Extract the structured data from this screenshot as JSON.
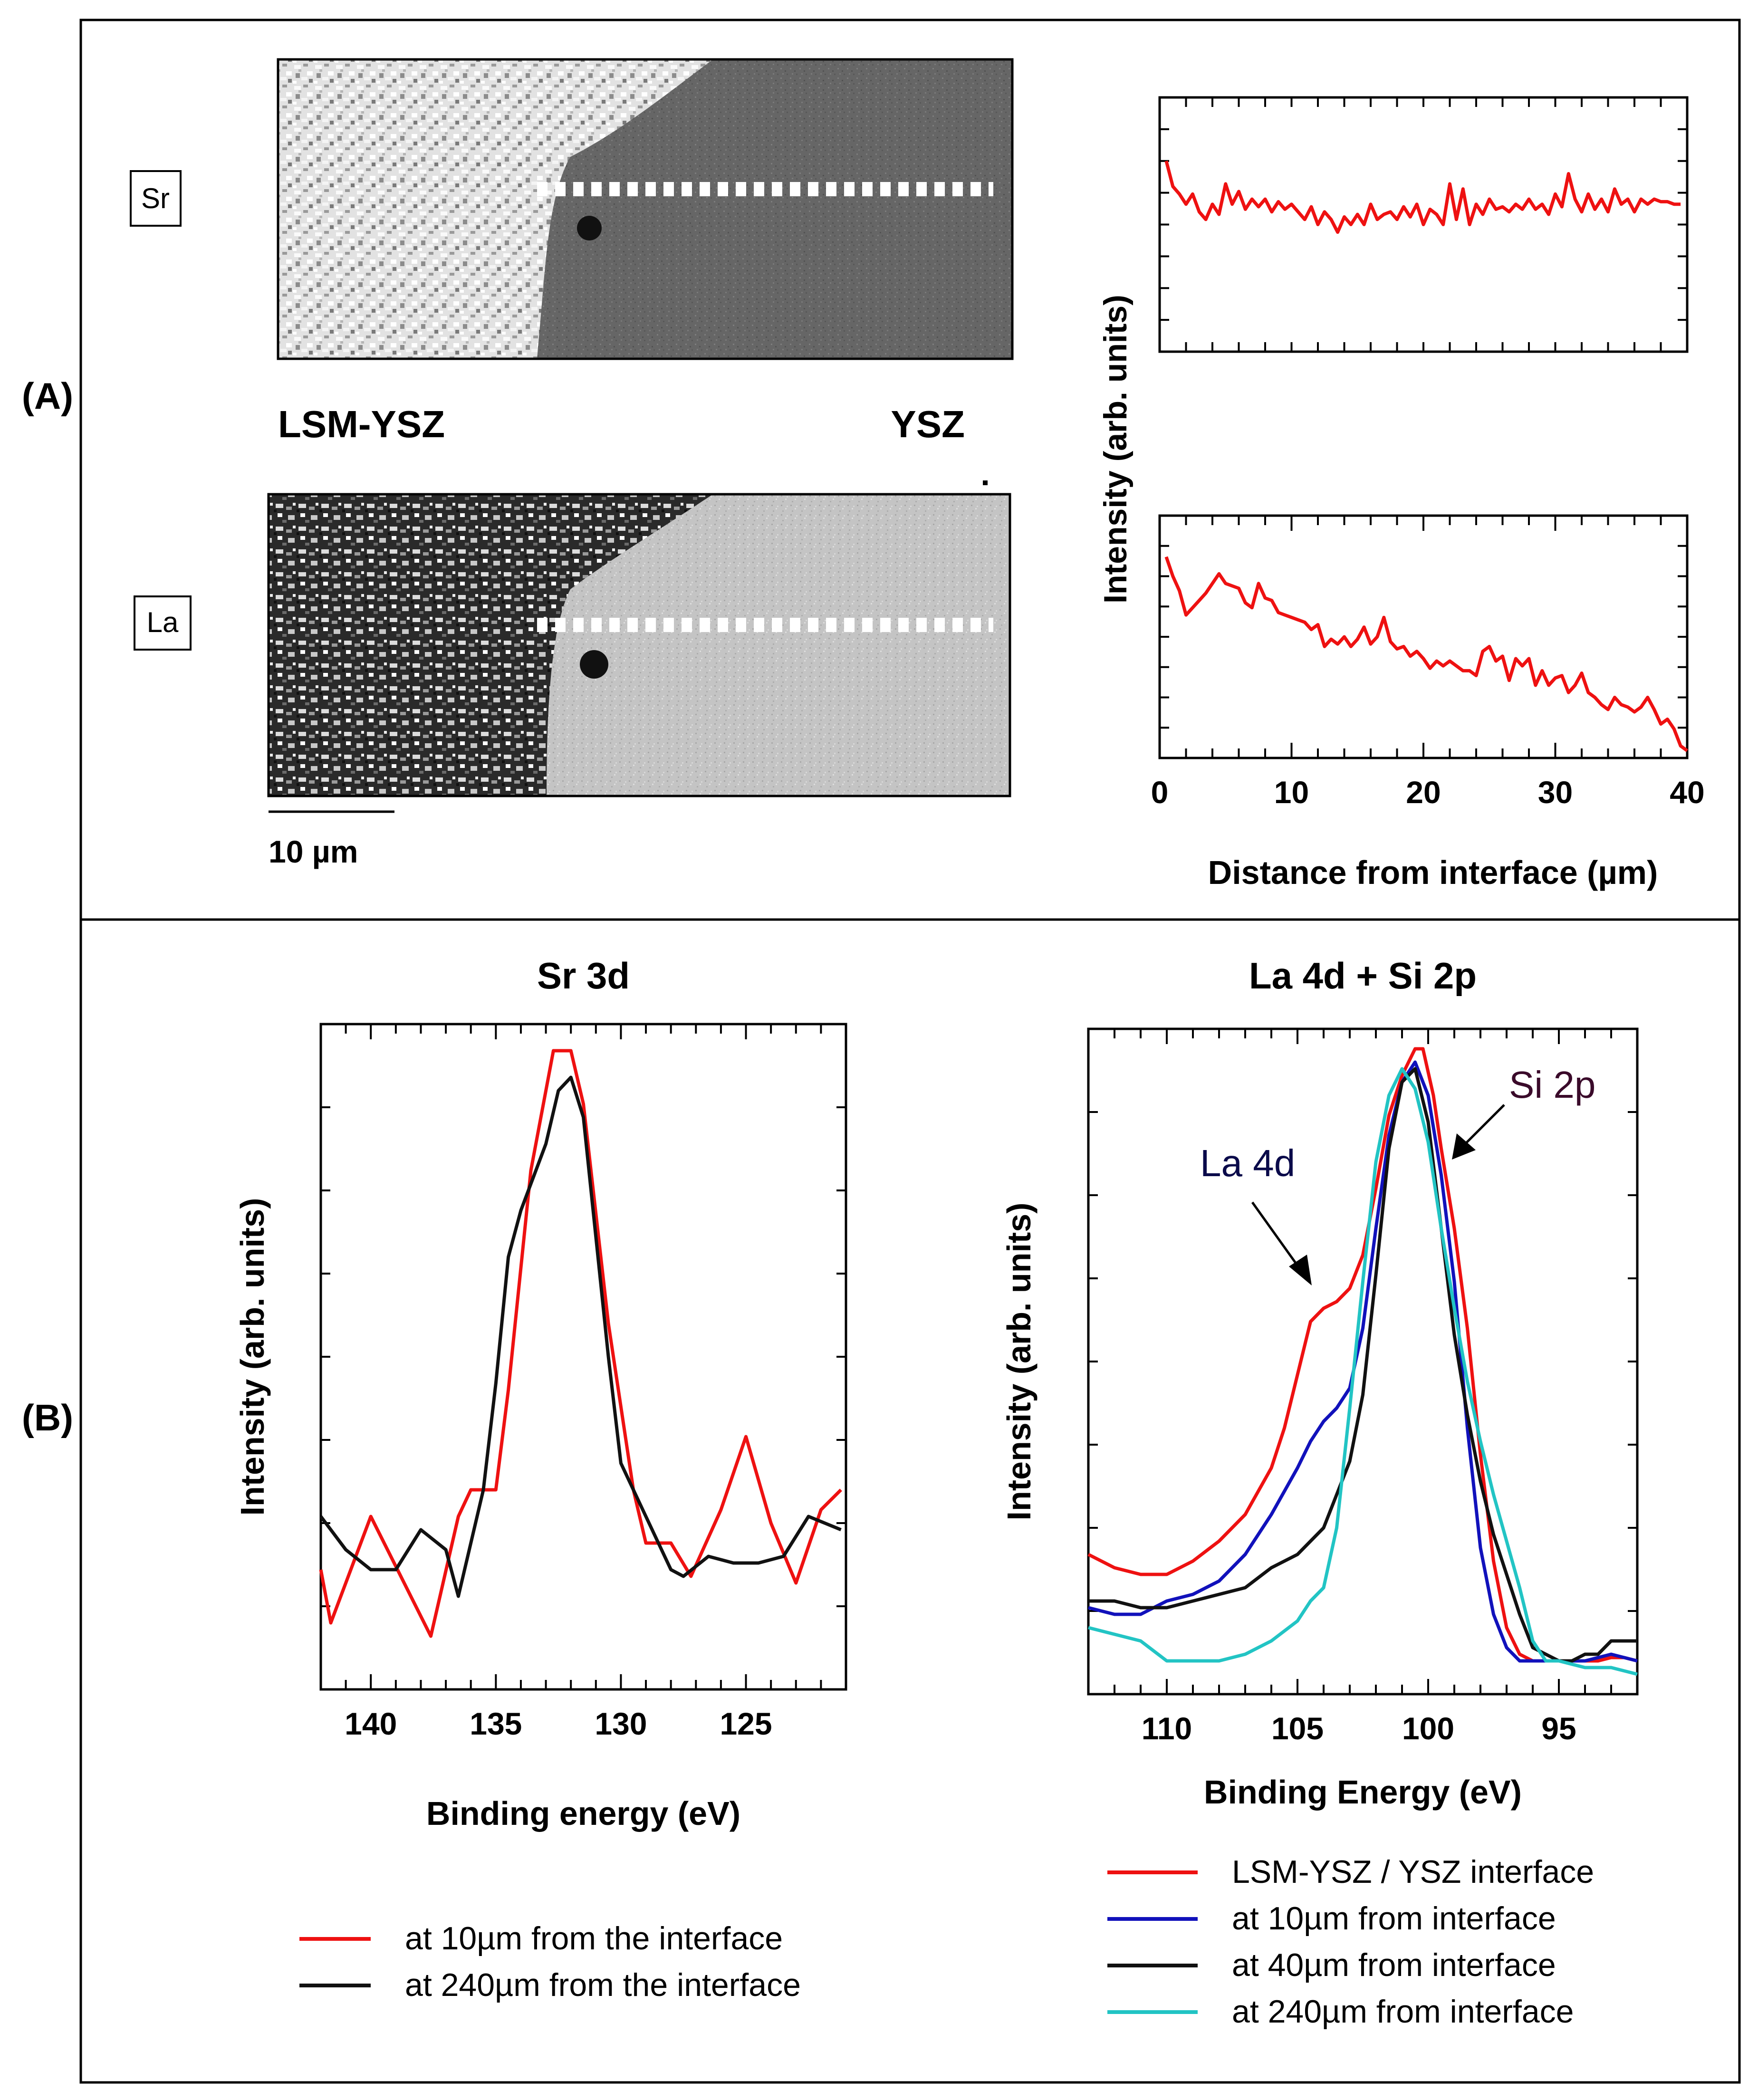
{
  "panels": {
    "a_label": "(A)",
    "b_label": "(B)"
  },
  "maps": {
    "sr_label": "Sr",
    "la_label": "La",
    "left_region": "LSM-YSZ",
    "right_region": "YSZ",
    "scale_bar": "10 µm"
  },
  "colors": {
    "red": "#ee1111",
    "blue": "#1111bb",
    "black": "#111111",
    "cyan": "#22c4c4"
  },
  "chart_data": [
    {
      "id": "sr_profile",
      "type": "line",
      "xlabel": "",
      "ylabel": "",
      "xlim": [
        0,
        40
      ],
      "ylim": [
        0,
        1
      ],
      "series": [
        {
          "color": "red",
          "x": [
            0.5,
            1,
            1.5,
            2,
            2.5,
            3,
            3.5,
            4,
            4.5,
            5,
            5.5,
            6,
            6.5,
            7,
            7.5,
            8,
            8.5,
            9,
            9.5,
            10,
            10.5,
            11,
            11.5,
            12,
            12.5,
            13,
            13.5,
            14,
            14.5,
            15,
            15.5,
            16,
            16.5,
            17,
            17.5,
            18,
            18.5,
            19,
            19.5,
            20,
            20.5,
            21,
            21.5,
            22,
            22.5,
            23,
            23.5,
            24,
            24.5,
            25,
            25.5,
            26,
            26.5,
            27,
            27.5,
            28,
            28.5,
            29,
            29.5,
            30,
            30.5,
            31,
            31.5,
            32,
            32.5,
            33,
            33.5,
            34,
            34.5,
            35,
            35.5,
            36,
            36.5,
            37,
            37.5,
            38,
            38.5,
            39,
            39.5
          ],
          "y": [
            0.75,
            0.65,
            0.62,
            0.58,
            0.62,
            0.55,
            0.52,
            0.58,
            0.54,
            0.66,
            0.58,
            0.63,
            0.56,
            0.6,
            0.57,
            0.6,
            0.55,
            0.59,
            0.56,
            0.58,
            0.55,
            0.52,
            0.57,
            0.5,
            0.55,
            0.52,
            0.47,
            0.53,
            0.5,
            0.54,
            0.5,
            0.58,
            0.52,
            0.54,
            0.55,
            0.52,
            0.57,
            0.53,
            0.58,
            0.5,
            0.56,
            0.54,
            0.5,
            0.66,
            0.52,
            0.64,
            0.5,
            0.58,
            0.54,
            0.6,
            0.56,
            0.57,
            0.55,
            0.58,
            0.56,
            0.6,
            0.56,
            0.58,
            0.54,
            0.62,
            0.57,
            0.7,
            0.6,
            0.55,
            0.62,
            0.56,
            0.6,
            0.55,
            0.64,
            0.58,
            0.6,
            0.55,
            0.6,
            0.58,
            0.6,
            0.59,
            0.59,
            0.58,
            0.58
          ]
        }
      ]
    },
    {
      "id": "la_profile",
      "type": "line",
      "xlabel": "Distance from interface (µm)",
      "ylabel": "Intensity (arb. units)",
      "xlim": [
        0,
        40
      ],
      "ylim": [
        0,
        1
      ],
      "xticks": [
        0,
        10,
        20,
        30,
        40
      ],
      "series": [
        {
          "color": "red",
          "x": [
            0.5,
            1,
            1.5,
            2,
            2.5,
            3,
            3.5,
            4,
            4.5,
            5,
            5.5,
            6,
            6.5,
            7,
            7.5,
            8,
            8.5,
            9,
            9.5,
            10,
            10.5,
            11,
            11.5,
            12,
            12.5,
            13,
            13.5,
            14,
            14.5,
            15,
            15.5,
            16,
            16.5,
            17,
            17.5,
            18,
            18.5,
            19,
            19.5,
            20,
            20.5,
            21,
            21.5,
            22,
            22.5,
            23,
            23.5,
            24,
            24.5,
            25,
            25.5,
            26,
            26.5,
            27,
            27.5,
            28,
            28.5,
            29,
            29.5,
            30,
            30.5,
            31,
            31.5,
            32,
            32.5,
            33,
            33.5,
            34,
            34.5,
            35,
            35.5,
            36,
            36.5,
            37,
            37.5,
            38,
            38.5,
            39,
            39.5,
            40
          ],
          "y": [
            0.83,
            0.75,
            0.69,
            0.59,
            0.62,
            0.65,
            0.68,
            0.72,
            0.76,
            0.72,
            0.71,
            0.7,
            0.64,
            0.62,
            0.72,
            0.66,
            0.65,
            0.6,
            0.59,
            0.58,
            0.57,
            0.56,
            0.53,
            0.55,
            0.46,
            0.49,
            0.47,
            0.5,
            0.46,
            0.49,
            0.54,
            0.47,
            0.5,
            0.58,
            0.48,
            0.45,
            0.46,
            0.42,
            0.44,
            0.41,
            0.37,
            0.4,
            0.38,
            0.4,
            0.38,
            0.36,
            0.36,
            0.34,
            0.44,
            0.46,
            0.4,
            0.42,
            0.32,
            0.41,
            0.38,
            0.41,
            0.3,
            0.36,
            0.3,
            0.33,
            0.34,
            0.27,
            0.3,
            0.35,
            0.27,
            0.25,
            0.22,
            0.2,
            0.25,
            0.22,
            0.21,
            0.19,
            0.21,
            0.25,
            0.2,
            0.14,
            0.16,
            0.12,
            0.05,
            0.03
          ]
        }
      ]
    },
    {
      "id": "sr3d",
      "type": "line",
      "title": "Sr 3d",
      "xlabel": "Binding energy (eV)",
      "ylabel": "Intensity (arb. units)",
      "xlim": [
        142,
        121
      ],
      "ylim": [
        0,
        1
      ],
      "xticks": [
        140,
        135,
        130,
        125
      ],
      "legend_position": "bottom",
      "series": [
        {
          "name": "at 10µm from the interface",
          "color": "red",
          "x": [
            142,
            141.6,
            140,
            137.6,
            136.5,
            136,
            135,
            134.5,
            133.6,
            133,
            132.7,
            132,
            131.5,
            130.5,
            129.5,
            129,
            128,
            127.2,
            126,
            125,
            124,
            123,
            122,
            121.2
          ],
          "y": [
            0.18,
            0.1,
            0.26,
            0.08,
            0.26,
            0.3,
            0.3,
            0.45,
            0.78,
            0.9,
            0.96,
            0.96,
            0.88,
            0.55,
            0.3,
            0.22,
            0.22,
            0.17,
            0.27,
            0.38,
            0.25,
            0.16,
            0.27,
            0.3
          ]
        },
        {
          "name": "at 240µm from the interface",
          "color": "black",
          "x": [
            142,
            141,
            140,
            139,
            138,
            137,
            136.5,
            135.5,
            135,
            134.5,
            134,
            133,
            132.5,
            132,
            131.5,
            131,
            130.5,
            130,
            129.5,
            129,
            128,
            127.5,
            126.5,
            125.5,
            124.5,
            123.5,
            122.5,
            121.2
          ],
          "y": [
            0.26,
            0.21,
            0.18,
            0.18,
            0.24,
            0.21,
            0.14,
            0.3,
            0.46,
            0.65,
            0.72,
            0.82,
            0.9,
            0.92,
            0.86,
            0.68,
            0.5,
            0.34,
            0.3,
            0.26,
            0.18,
            0.17,
            0.2,
            0.19,
            0.19,
            0.2,
            0.26,
            0.24
          ]
        }
      ]
    },
    {
      "id": "la4d_si2p",
      "type": "line",
      "title": "La 4d  + Si 2p",
      "xlabel": "Binding Energy (eV)",
      "ylabel": "Intensity (arb. units)",
      "xlim": [
        113,
        92
      ],
      "ylim": [
        0,
        1
      ],
      "xticks": [
        110,
        105,
        100,
        95
      ],
      "annotations": [
        "La 4d",
        "Si 2p"
      ],
      "legend_position": "bottom",
      "series": [
        {
          "name": "LSM-YSZ / YSZ interface",
          "color": "red",
          "x": [
            113,
            112,
            111,
            110,
            109,
            108,
            107,
            106,
            105.5,
            105,
            104.5,
            104,
            103.5,
            103,
            102.5,
            102,
            101.5,
            101,
            100.5,
            100.2,
            99.8,
            99.5,
            99,
            98.5,
            98,
            97.5,
            97,
            96.5,
            96,
            95.5,
            95,
            94.5,
            94,
            93.5,
            93,
            92.5,
            92
          ],
          "y": [
            0.21,
            0.19,
            0.18,
            0.18,
            0.2,
            0.23,
            0.27,
            0.34,
            0.4,
            0.48,
            0.56,
            0.58,
            0.59,
            0.61,
            0.66,
            0.76,
            0.87,
            0.93,
            0.97,
            0.97,
            0.9,
            0.82,
            0.7,
            0.55,
            0.36,
            0.2,
            0.1,
            0.06,
            0.05,
            0.05,
            0.05,
            0.05,
            0.05,
            0.05,
            0.055,
            0.055,
            0.05
          ]
        },
        {
          "name": "at 10µm from interface",
          "color": "blue",
          "x": [
            113,
            112,
            111,
            110,
            109,
            108,
            107,
            106,
            105,
            104.5,
            104,
            103.5,
            103,
            102.5,
            102,
            101.5,
            101,
            100.5,
            100,
            99.5,
            99,
            98.5,
            98,
            97.5,
            97,
            96.5,
            96,
            95.5,
            95,
            94,
            93,
            92
          ],
          "y": [
            0.13,
            0.12,
            0.12,
            0.14,
            0.15,
            0.17,
            0.21,
            0.27,
            0.34,
            0.38,
            0.41,
            0.43,
            0.46,
            0.55,
            0.7,
            0.84,
            0.92,
            0.95,
            0.9,
            0.78,
            0.62,
            0.4,
            0.22,
            0.12,
            0.07,
            0.05,
            0.05,
            0.05,
            0.05,
            0.05,
            0.06,
            0.05
          ]
        },
        {
          "name": "at 40µm from interface",
          "color": "black",
          "x": [
            113,
            112,
            111,
            110,
            109,
            108,
            107,
            106,
            105,
            104,
            103.5,
            103,
            102.5,
            102,
            101.5,
            101,
            100.5,
            100,
            99.5,
            99,
            98.5,
            98,
            97.5,
            97,
            96.5,
            96,
            95.5,
            95,
            94.5,
            94,
            93.5,
            93,
            92
          ],
          "y": [
            0.14,
            0.14,
            0.13,
            0.13,
            0.14,
            0.15,
            0.16,
            0.19,
            0.21,
            0.25,
            0.3,
            0.35,
            0.45,
            0.63,
            0.82,
            0.92,
            0.94,
            0.86,
            0.7,
            0.54,
            0.42,
            0.32,
            0.24,
            0.18,
            0.12,
            0.07,
            0.06,
            0.05,
            0.05,
            0.06,
            0.06,
            0.08,
            0.08
          ]
        },
        {
          "name": "at 240µm from interface",
          "color": "cyan",
          "x": [
            113,
            112,
            111,
            110,
            109,
            108,
            107,
            106,
            105,
            104.5,
            104,
            103.5,
            103,
            102.5,
            102,
            101.5,
            101,
            100.5,
            100,
            99.5,
            99,
            98.5,
            98,
            97.5,
            97,
            96.5,
            96,
            95.5,
            95,
            94,
            93,
            92
          ],
          "y": [
            0.1,
            0.09,
            0.08,
            0.05,
            0.05,
            0.05,
            0.06,
            0.08,
            0.11,
            0.14,
            0.16,
            0.25,
            0.43,
            0.62,
            0.8,
            0.9,
            0.94,
            0.91,
            0.83,
            0.7,
            0.58,
            0.47,
            0.38,
            0.3,
            0.23,
            0.16,
            0.08,
            0.05,
            0.05,
            0.04,
            0.04,
            0.03
          ]
        }
      ]
    }
  ]
}
